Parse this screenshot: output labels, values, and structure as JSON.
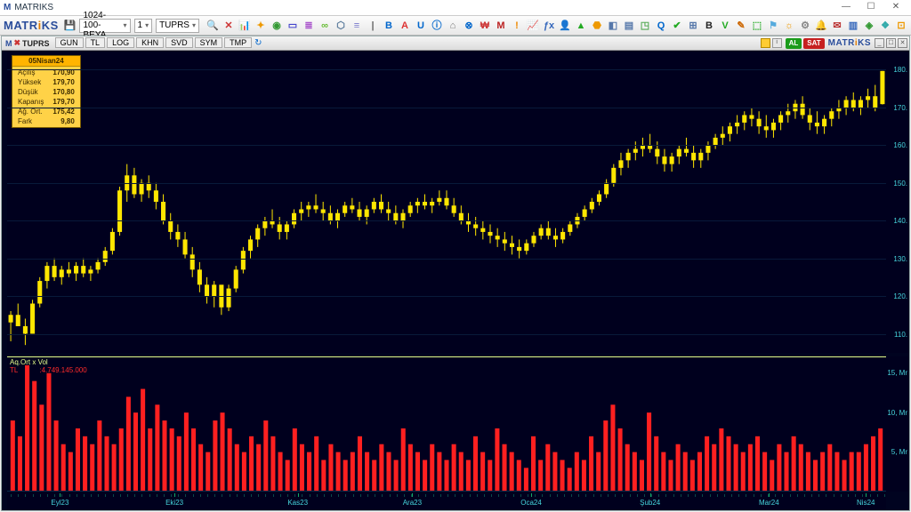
{
  "app": {
    "title": "MATRIKS",
    "brand_a": "MATR",
    "brand_b": "i",
    "brand_c": "KS"
  },
  "toolbar": {
    "workspace": "1024-100-BEYA",
    "period": "1",
    "symbol": "TUPRS",
    "icons": [
      {
        "glyph": "🔍",
        "c": "#999"
      },
      {
        "glyph": "✕",
        "c": "#c33"
      },
      {
        "glyph": "📊",
        "c": "#57a"
      },
      {
        "glyph": "✦",
        "c": "#e90"
      },
      {
        "glyph": "◉",
        "c": "#393"
      },
      {
        "glyph": "▭",
        "c": "#44c"
      },
      {
        "glyph": "≣",
        "c": "#a5c"
      },
      {
        "glyph": "∞",
        "c": "#6b3"
      },
      {
        "glyph": "⬡",
        "c": "#579"
      },
      {
        "glyph": "≡",
        "c": "#77c"
      },
      {
        "glyph": "|",
        "c": "#666"
      },
      {
        "glyph": "B",
        "c": "#06c"
      },
      {
        "glyph": "A",
        "c": "#d33"
      },
      {
        "glyph": "U",
        "c": "#06c"
      },
      {
        "glyph": "ⓘ",
        "c": "#06c"
      },
      {
        "glyph": "⌂",
        "c": "#777"
      },
      {
        "glyph": "⊗",
        "c": "#06c"
      },
      {
        "glyph": "₩",
        "c": "#c33"
      },
      {
        "glyph": "M",
        "c": "#b22"
      },
      {
        "glyph": "!",
        "c": "#e80"
      },
      {
        "glyph": "📈",
        "c": "#57a"
      },
      {
        "glyph": "ƒx",
        "c": "#36b"
      },
      {
        "glyph": "👤",
        "c": "#c55"
      },
      {
        "glyph": "▲",
        "c": "#2a2"
      },
      {
        "glyph": "⬣",
        "c": "#e90"
      },
      {
        "glyph": "◧",
        "c": "#57a"
      },
      {
        "glyph": "▤",
        "c": "#57a"
      },
      {
        "glyph": "◳",
        "c": "#5a5"
      },
      {
        "glyph": "Q",
        "c": "#06c"
      },
      {
        "glyph": "✔",
        "c": "#2a2"
      },
      {
        "glyph": "⊞",
        "c": "#57a"
      },
      {
        "glyph": "B",
        "c": "#222"
      },
      {
        "glyph": "V",
        "c": "#2a2"
      },
      {
        "glyph": "✎",
        "c": "#c60"
      },
      {
        "glyph": "⬚",
        "c": "#2a2"
      },
      {
        "glyph": "⚑",
        "c": "#5ad"
      },
      {
        "glyph": "☼",
        "c": "#e90"
      },
      {
        "glyph": "⚙",
        "c": "#888"
      },
      {
        "glyph": "🔔",
        "c": "#e90"
      },
      {
        "glyph": "✉",
        "c": "#b33"
      },
      {
        "glyph": "▥",
        "c": "#36b"
      },
      {
        "glyph": "◈",
        "c": "#393"
      },
      {
        "glyph": "❖",
        "c": "#3aa"
      },
      {
        "glyph": "⊡",
        "c": "#e90"
      }
    ]
  },
  "subheader": {
    "symbol": "TUPRS",
    "tabs": [
      "GUN",
      "TL",
      "LOG",
      "KHN",
      "SVD",
      "SYM",
      "TMP"
    ],
    "buy": "AL",
    "sell": "SAT"
  },
  "info": {
    "date": "05Nisan24",
    "rows": [
      [
        "Açılış",
        "170,90"
      ],
      [
        "Yüksek",
        "179,70"
      ],
      [
        "Düşük",
        "170,80"
      ],
      [
        "Kapanış",
        "179,70"
      ],
      [
        "Ağ. Ort.",
        "175,42"
      ],
      [
        "Fark",
        "9,80"
      ]
    ]
  },
  "chart": {
    "bg": "#00001e",
    "candle_color": "#ffe600",
    "wick_color": "#ffe600",
    "vol_color": "#ff2020",
    "axis_color": "#46d5dd",
    "grid_color": "#081a3a",
    "ymin": 105,
    "ymax": 185,
    "yticks": [
      110,
      120,
      130,
      140,
      150,
      160,
      170,
      180
    ],
    "vmax": 17,
    "vticks": [
      {
        "v": 5,
        "l": "5, Mr"
      },
      {
        "v": 10,
        "l": "10, Mr"
      },
      {
        "v": 15,
        "l": "15, Mr"
      }
    ],
    "xlabels": [
      {
        "x": 0.06,
        "l": "Eyl23"
      },
      {
        "x": 0.19,
        "l": "Eki23"
      },
      {
        "x": 0.33,
        "l": "Kas23"
      },
      {
        "x": 0.46,
        "l": "Ara23"
      },
      {
        "x": 0.595,
        "l": "Oca24"
      },
      {
        "x": 0.73,
        "l": "Şub24"
      },
      {
        "x": 0.865,
        "l": "Mar24"
      },
      {
        "x": 0.975,
        "l": "Nis24"
      }
    ],
    "vol_label1": "Aq.Ort x Vol",
    "vol_label2_a": "TL",
    "vol_label2_b": ":4.749.145.000",
    "candles": [
      {
        "o": 113,
        "h": 116,
        "l": 108,
        "c": 115,
        "v": 9
      },
      {
        "o": 115,
        "h": 118,
        "l": 112,
        "c": 112,
        "v": 7
      },
      {
        "o": 112,
        "h": 114,
        "l": 107,
        "c": 110,
        "v": 16
      },
      {
        "o": 110,
        "h": 119,
        "l": 110,
        "c": 118,
        "v": 14
      },
      {
        "o": 118,
        "h": 125,
        "l": 117,
        "c": 124,
        "v": 11
      },
      {
        "o": 124,
        "h": 129,
        "l": 122,
        "c": 128,
        "v": 15
      },
      {
        "o": 128,
        "h": 130,
        "l": 124,
        "c": 125,
        "v": 9
      },
      {
        "o": 125,
        "h": 128,
        "l": 123,
        "c": 127,
        "v": 6
      },
      {
        "o": 127,
        "h": 129,
        "l": 125,
        "c": 126,
        "v": 5
      },
      {
        "o": 126,
        "h": 129,
        "l": 124,
        "c": 128,
        "v": 8
      },
      {
        "o": 128,
        "h": 130,
        "l": 125,
        "c": 126,
        "v": 7
      },
      {
        "o": 126,
        "h": 128,
        "l": 124,
        "c": 127,
        "v": 6
      },
      {
        "o": 127,
        "h": 130,
        "l": 126,
        "c": 129,
        "v": 9
      },
      {
        "o": 129,
        "h": 133,
        "l": 128,
        "c": 132,
        "v": 7
      },
      {
        "o": 132,
        "h": 138,
        "l": 131,
        "c": 137,
        "v": 6
      },
      {
        "o": 137,
        "h": 149,
        "l": 136,
        "c": 148,
        "v": 8
      },
      {
        "o": 148,
        "h": 155,
        "l": 145,
        "c": 152,
        "v": 12
      },
      {
        "o": 152,
        "h": 154,
        "l": 146,
        "c": 147,
        "v": 10
      },
      {
        "o": 147,
        "h": 151,
        "l": 145,
        "c": 150,
        "v": 13
      },
      {
        "o": 150,
        "h": 152,
        "l": 146,
        "c": 148,
        "v": 8
      },
      {
        "o": 148,
        "h": 150,
        "l": 143,
        "c": 145,
        "v": 11
      },
      {
        "o": 145,
        "h": 147,
        "l": 139,
        "c": 140,
        "v": 9
      },
      {
        "o": 140,
        "h": 142,
        "l": 135,
        "c": 137,
        "v": 8
      },
      {
        "o": 137,
        "h": 139,
        "l": 133,
        "c": 135,
        "v": 7
      },
      {
        "o": 135,
        "h": 137,
        "l": 130,
        "c": 131,
        "v": 10
      },
      {
        "o": 131,
        "h": 133,
        "l": 125,
        "c": 127,
        "v": 8
      },
      {
        "o": 127,
        "h": 129,
        "l": 121,
        "c": 123,
        "v": 6
      },
      {
        "o": 123,
        "h": 125,
        "l": 118,
        "c": 120,
        "v": 5
      },
      {
        "o": 120,
        "h": 124,
        "l": 117,
        "c": 123,
        "v": 9
      },
      {
        "o": 123,
        "h": 121,
        "l": 115,
        "c": 117,
        "v": 10
      },
      {
        "o": 117,
        "h": 123,
        "l": 116,
        "c": 122,
        "v": 8
      },
      {
        "o": 122,
        "h": 128,
        "l": 121,
        "c": 127,
        "v": 6
      },
      {
        "o": 127,
        "h": 133,
        "l": 126,
        "c": 132,
        "v": 5
      },
      {
        "o": 132,
        "h": 136,
        "l": 130,
        "c": 135,
        "v": 7
      },
      {
        "o": 135,
        "h": 139,
        "l": 133,
        "c": 138,
        "v": 6
      },
      {
        "o": 138,
        "h": 141,
        "l": 136,
        "c": 140,
        "v": 9
      },
      {
        "o": 140,
        "h": 143,
        "l": 138,
        "c": 139,
        "v": 7
      },
      {
        "o": 139,
        "h": 141,
        "l": 135,
        "c": 137,
        "v": 5
      },
      {
        "o": 137,
        "h": 140,
        "l": 135,
        "c": 139,
        "v": 4
      },
      {
        "o": 139,
        "h": 143,
        "l": 138,
        "c": 142,
        "v": 8
      },
      {
        "o": 142,
        "h": 145,
        "l": 140,
        "c": 143,
        "v": 6
      },
      {
        "o": 143,
        "h": 145,
        "l": 141,
        "c": 144,
        "v": 5
      },
      {
        "o": 144,
        "h": 147,
        "l": 142,
        "c": 143,
        "v": 7
      },
      {
        "o": 143,
        "h": 145,
        "l": 140,
        "c": 142,
        "v": 4
      },
      {
        "o": 142,
        "h": 144,
        "l": 139,
        "c": 140,
        "v": 6
      },
      {
        "o": 140,
        "h": 143,
        "l": 138,
        "c": 142,
        "v": 5
      },
      {
        "o": 142,
        "h": 145,
        "l": 141,
        "c": 144,
        "v": 4
      },
      {
        "o": 144,
        "h": 146,
        "l": 142,
        "c": 143,
        "v": 5
      },
      {
        "o": 143,
        "h": 145,
        "l": 140,
        "c": 141,
        "v": 7
      },
      {
        "o": 141,
        "h": 144,
        "l": 139,
        "c": 143,
        "v": 5
      },
      {
        "o": 143,
        "h": 146,
        "l": 142,
        "c": 145,
        "v": 4
      },
      {
        "o": 145,
        "h": 147,
        "l": 142,
        "c": 143,
        "v": 6
      },
      {
        "o": 143,
        "h": 145,
        "l": 140,
        "c": 142,
        "v": 5
      },
      {
        "o": 142,
        "h": 144,
        "l": 139,
        "c": 140,
        "v": 4
      },
      {
        "o": 140,
        "h": 143,
        "l": 138,
        "c": 142,
        "v": 8
      },
      {
        "o": 142,
        "h": 145,
        "l": 141,
        "c": 144,
        "v": 6
      },
      {
        "o": 144,
        "h": 146,
        "l": 142,
        "c": 145,
        "v": 5
      },
      {
        "o": 145,
        "h": 147,
        "l": 143,
        "c": 144,
        "v": 4
      },
      {
        "o": 144,
        "h": 146,
        "l": 142,
        "c": 145,
        "v": 6
      },
      {
        "o": 145,
        "h": 148,
        "l": 144,
        "c": 146,
        "v": 5
      },
      {
        "o": 146,
        "h": 148,
        "l": 143,
        "c": 144,
        "v": 4
      },
      {
        "o": 144,
        "h": 146,
        "l": 141,
        "c": 142,
        "v": 6
      },
      {
        "o": 142,
        "h": 144,
        "l": 139,
        "c": 140,
        "v": 5
      },
      {
        "o": 140,
        "h": 142,
        "l": 137,
        "c": 139,
        "v": 4
      },
      {
        "o": 139,
        "h": 141,
        "l": 136,
        "c": 138,
        "v": 7
      },
      {
        "o": 138,
        "h": 140,
        "l": 135,
        "c": 137,
        "v": 5
      },
      {
        "o": 137,
        "h": 139,
        "l": 134,
        "c": 136,
        "v": 4
      },
      {
        "o": 136,
        "h": 138,
        "l": 133,
        "c": 135,
        "v": 8
      },
      {
        "o": 135,
        "h": 137,
        "l": 132,
        "c": 134,
        "v": 6
      },
      {
        "o": 134,
        "h": 136,
        "l": 131,
        "c": 133,
        "v": 5
      },
      {
        "o": 133,
        "h": 135,
        "l": 130,
        "c": 132,
        "v": 4
      },
      {
        "o": 132,
        "h": 135,
        "l": 131,
        "c": 134,
        "v": 3
      },
      {
        "o": 134,
        "h": 137,
        "l": 133,
        "c": 136,
        "v": 7
      },
      {
        "o": 136,
        "h": 139,
        "l": 135,
        "c": 138,
        "v": 4
      },
      {
        "o": 138,
        "h": 140,
        "l": 135,
        "c": 136,
        "v": 6
      },
      {
        "o": 136,
        "h": 138,
        "l": 133,
        "c": 135,
        "v": 5
      },
      {
        "o": 135,
        "h": 138,
        "l": 134,
        "c": 137,
        "v": 4
      },
      {
        "o": 137,
        "h": 140,
        "l": 136,
        "c": 139,
        "v": 3
      },
      {
        "o": 139,
        "h": 142,
        "l": 138,
        "c": 141,
        "v": 5
      },
      {
        "o": 141,
        "h": 144,
        "l": 140,
        "c": 143,
        "v": 4
      },
      {
        "o": 143,
        "h": 146,
        "l": 142,
        "c": 145,
        "v": 7
      },
      {
        "o": 145,
        "h": 148,
        "l": 144,
        "c": 147,
        "v": 5
      },
      {
        "o": 147,
        "h": 151,
        "l": 146,
        "c": 150,
        "v": 9
      },
      {
        "o": 150,
        "h": 155,
        "l": 149,
        "c": 154,
        "v": 11
      },
      {
        "o": 154,
        "h": 158,
        "l": 152,
        "c": 156,
        "v": 8
      },
      {
        "o": 156,
        "h": 159,
        "l": 154,
        "c": 158,
        "v": 6
      },
      {
        "o": 158,
        "h": 161,
        "l": 156,
        "c": 159,
        "v": 5
      },
      {
        "o": 159,
        "h": 162,
        "l": 157,
        "c": 160,
        "v": 4
      },
      {
        "o": 160,
        "h": 163,
        "l": 158,
        "c": 159,
        "v": 10
      },
      {
        "o": 159,
        "h": 161,
        "l": 155,
        "c": 157,
        "v": 7
      },
      {
        "o": 157,
        "h": 159,
        "l": 153,
        "c": 155,
        "v": 5
      },
      {
        "o": 155,
        "h": 158,
        "l": 153,
        "c": 157,
        "v": 4
      },
      {
        "o": 157,
        "h": 160,
        "l": 155,
        "c": 159,
        "v": 6
      },
      {
        "o": 159,
        "h": 162,
        "l": 157,
        "c": 158,
        "v": 5
      },
      {
        "o": 158,
        "h": 160,
        "l": 154,
        "c": 156,
        "v": 4
      },
      {
        "o": 156,
        "h": 159,
        "l": 154,
        "c": 158,
        "v": 5
      },
      {
        "o": 158,
        "h": 161,
        "l": 156,
        "c": 160,
        "v": 7
      },
      {
        "o": 160,
        "h": 163,
        "l": 159,
        "c": 162,
        "v": 6
      },
      {
        "o": 162,
        "h": 165,
        "l": 160,
        "c": 163,
        "v": 8
      },
      {
        "o": 163,
        "h": 166,
        "l": 161,
        "c": 165,
        "v": 7
      },
      {
        "o": 165,
        "h": 168,
        "l": 163,
        "c": 166,
        "v": 6
      },
      {
        "o": 166,
        "h": 169,
        "l": 164,
        "c": 168,
        "v": 5
      },
      {
        "o": 168,
        "h": 170,
        "l": 165,
        "c": 167,
        "v": 6
      },
      {
        "o": 167,
        "h": 169,
        "l": 163,
        "c": 165,
        "v": 7
      },
      {
        "o": 165,
        "h": 168,
        "l": 162,
        "c": 164,
        "v": 5
      },
      {
        "o": 164,
        "h": 167,
        "l": 162,
        "c": 166,
        "v": 4
      },
      {
        "o": 166,
        "h": 169,
        "l": 164,
        "c": 168,
        "v": 6
      },
      {
        "o": 168,
        "h": 171,
        "l": 166,
        "c": 169,
        "v": 5
      },
      {
        "o": 169,
        "h": 172,
        "l": 167,
        "c": 171,
        "v": 7
      },
      {
        "o": 171,
        "h": 173,
        "l": 167,
        "c": 168,
        "v": 6
      },
      {
        "o": 168,
        "h": 170,
        "l": 164,
        "c": 166,
        "v": 5
      },
      {
        "o": 166,
        "h": 169,
        "l": 163,
        "c": 165,
        "v": 4
      },
      {
        "o": 165,
        "h": 168,
        "l": 163,
        "c": 167,
        "v": 5
      },
      {
        "o": 167,
        "h": 170,
        "l": 165,
        "c": 169,
        "v": 6
      },
      {
        "o": 169,
        "h": 172,
        "l": 167,
        "c": 170,
        "v": 5
      },
      {
        "o": 170,
        "h": 173,
        "l": 168,
        "c": 172,
        "v": 4
      },
      {
        "o": 172,
        "h": 174,
        "l": 169,
        "c": 170,
        "v": 5
      },
      {
        "o": 170,
        "h": 173,
        "l": 168,
        "c": 172,
        "v": 5
      },
      {
        "o": 172,
        "h": 175,
        "l": 170,
        "c": 173,
        "v": 6
      },
      {
        "o": 173,
        "h": 176,
        "l": 169,
        "c": 170,
        "v": 7
      },
      {
        "o": 170.9,
        "h": 179.7,
        "l": 170.8,
        "c": 179.7,
        "v": 8
      }
    ]
  }
}
